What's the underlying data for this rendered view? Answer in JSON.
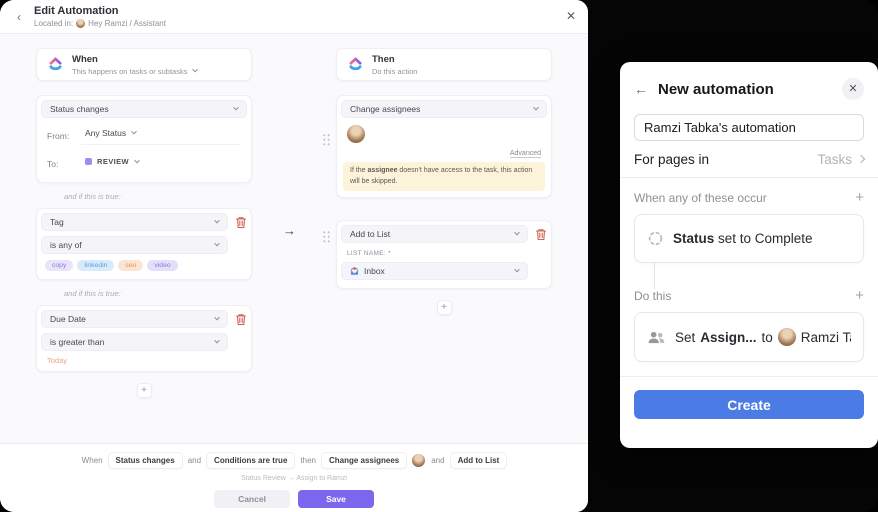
{
  "colors": {
    "accent_purple": "#7b68ee",
    "create_blue": "#4b7be4",
    "danger_red": "#cf5f4e",
    "warning_bg": "#fcf3da",
    "status_review_purple": "#9d8df0",
    "today_orange": "#efa584",
    "panel_backdrop": "#050505"
  },
  "edit_dialog": {
    "header": {
      "title": "Edit Automation",
      "located_prefix": "Located in:",
      "located_value": "Hey Ramzi / Assistant"
    },
    "when_column": {
      "trigger_card": {
        "title": "When",
        "subtitle": "This happens on tasks or subtasks"
      },
      "status_card": {
        "selector": "Status changes",
        "from_label": "From:",
        "from_value": "Any Status",
        "to_label": "To:",
        "to_value": "REVIEW"
      },
      "condition_text_1": "and if this is true:",
      "tag_card": {
        "field": "Tag",
        "operator": "is any of",
        "tags": [
          {
            "label": "copy",
            "bg": "#eae4fb",
            "color": "#8b76e0"
          },
          {
            "label": "linkedin",
            "bg": "#d9ebfa",
            "color": "#5a9fe0"
          },
          {
            "label": "seo",
            "bg": "#fbe4d2",
            "color": "#e09357"
          },
          {
            "label": "video",
            "bg": "#e3defa",
            "color": "#8a7ae0"
          }
        ]
      },
      "condition_text_2": "and if this is true:",
      "due_card": {
        "field": "Due Date",
        "operator": "is greater than",
        "value": "Today"
      }
    },
    "then_column": {
      "action_card": {
        "title": "Then",
        "subtitle": "Do this action"
      },
      "assignees_card": {
        "selector": "Change assignees",
        "advanced_label": "Advanced",
        "warning_prefix": "If the ",
        "warning_bold": "assignee",
        "warning_suffix": " doesn't have access to the task, this action will be skipped."
      },
      "list_card": {
        "selector": "Add to List",
        "list_name_label": "LIST NAME: *",
        "list_value": "Inbox"
      }
    },
    "footer": {
      "summary_when": "When",
      "chip_trigger": "Status changes",
      "and_1": "and",
      "chip_condition": "Conditions are true",
      "then_word": "then",
      "chip_action_1": "Change assignees",
      "and_2": "and",
      "chip_action_2": "Add to List",
      "subtitle": "Status Review → Assign to Ramzi",
      "cancel_label": "Cancel",
      "save_label": "Save"
    }
  },
  "side_panel": {
    "title": "New automation",
    "name_value": "Ramzi Tabka's automation",
    "scope_label": "For pages in",
    "scope_value": "Tasks",
    "trigger_section_label": "When any of these occur",
    "trigger_bold": "Status",
    "trigger_rest": " set to Complete",
    "action_section_label": "Do this",
    "action_pre": "Set",
    "action_bold": "Assign...",
    "action_mid": "to",
    "action_value": "Ramzi Ta...",
    "create_label": "Create"
  }
}
